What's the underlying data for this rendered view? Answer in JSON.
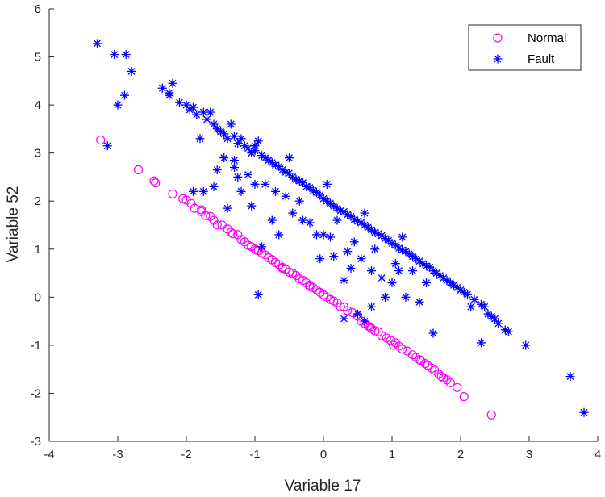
{
  "chart_data": {
    "type": "scatter",
    "title": "",
    "xlabel": "Variable 17",
    "ylabel": "Variable 52",
    "xlim": [
      -4,
      4
    ],
    "ylim": [
      -3,
      6
    ],
    "xticks": [
      -4,
      -3,
      -2,
      -1,
      0,
      1,
      2,
      3,
      4
    ],
    "yticks": [
      -3,
      -2,
      -1,
      0,
      1,
      2,
      3,
      4,
      5,
      6
    ],
    "grid": false,
    "legend_position": "top-right",
    "series": [
      {
        "name": "Normal",
        "marker": "circle",
        "color": "#ff00ff",
        "points": [
          [
            -3.25,
            3.27
          ],
          [
            -2.7,
            2.65
          ],
          [
            -2.47,
            2.42
          ],
          [
            -2.45,
            2.38
          ],
          [
            -2.2,
            2.15
          ],
          [
            -2.05,
            2.05
          ],
          [
            -2.0,
            2.02
          ],
          [
            -1.93,
            1.95
          ],
          [
            -1.88,
            1.85
          ],
          [
            -1.78,
            1.82
          ],
          [
            -1.72,
            1.7
          ],
          [
            -1.65,
            1.68
          ],
          [
            -1.55,
            1.5
          ],
          [
            -1.48,
            1.5
          ],
          [
            -1.4,
            1.42
          ],
          [
            -1.35,
            1.35
          ],
          [
            -1.32,
            1.32
          ],
          [
            -1.25,
            1.3
          ],
          [
            -1.2,
            1.2
          ],
          [
            -1.15,
            1.15
          ],
          [
            -1.1,
            1.08
          ],
          [
            -1.05,
            1.05
          ],
          [
            -1.0,
            1.0
          ],
          [
            -0.95,
            0.97
          ],
          [
            -0.9,
            0.92
          ],
          [
            -0.85,
            0.88
          ],
          [
            -0.8,
            0.82
          ],
          [
            -0.75,
            0.78
          ],
          [
            -0.7,
            0.72
          ],
          [
            -0.65,
            0.68
          ],
          [
            -0.6,
            0.62
          ],
          [
            -0.55,
            0.58
          ],
          [
            -0.5,
            0.52
          ],
          [
            -0.45,
            0.5
          ],
          [
            -0.4,
            0.45
          ],
          [
            -0.35,
            0.38
          ],
          [
            -0.3,
            0.35
          ],
          [
            -0.25,
            0.3
          ],
          [
            -0.2,
            0.25
          ],
          [
            -0.15,
            0.2
          ],
          [
            -0.1,
            0.15
          ],
          [
            -0.05,
            0.1
          ],
          [
            0.0,
            0.05
          ],
          [
            0.05,
            0.0
          ],
          [
            0.1,
            -0.05
          ],
          [
            0.15,
            -0.08
          ],
          [
            0.2,
            -0.12
          ],
          [
            0.3,
            -0.2
          ],
          [
            0.35,
            -0.28
          ],
          [
            0.42,
            -0.32
          ],
          [
            0.5,
            -0.4
          ],
          [
            0.55,
            -0.5
          ],
          [
            0.6,
            -0.55
          ],
          [
            0.65,
            -0.6
          ],
          [
            0.7,
            -0.65
          ],
          [
            0.75,
            -0.7
          ],
          [
            0.8,
            -0.72
          ],
          [
            0.85,
            -0.8
          ],
          [
            0.92,
            -0.85
          ],
          [
            0.98,
            -0.9
          ],
          [
            1.05,
            -0.95
          ],
          [
            1.1,
            -1.02
          ],
          [
            1.15,
            -1.08
          ],
          [
            1.22,
            -1.12
          ],
          [
            1.3,
            -1.2
          ],
          [
            1.35,
            -1.25
          ],
          [
            1.42,
            -1.32
          ],
          [
            1.48,
            -1.38
          ],
          [
            1.52,
            -1.42
          ],
          [
            1.58,
            -1.48
          ],
          [
            1.62,
            -1.52
          ],
          [
            1.68,
            -1.6
          ],
          [
            1.72,
            -1.65
          ],
          [
            1.8,
            -1.72
          ],
          [
            1.85,
            -1.78
          ],
          [
            1.95,
            -1.88
          ],
          [
            2.05,
            -2.07
          ],
          [
            2.45,
            -2.45
          ],
          [
            -1.78,
            1.78
          ],
          [
            -1.6,
            1.6
          ],
          [
            -0.98,
            0.98
          ],
          [
            -0.6,
            0.6
          ],
          [
            -0.2,
            0.22
          ],
          [
            0.25,
            -0.2
          ],
          [
            0.68,
            -0.62
          ],
          [
            1.02,
            -1.0
          ],
          [
            1.4,
            -1.3
          ],
          [
            1.75,
            -1.68
          ]
        ]
      },
      {
        "name": "Fault",
        "marker": "asterisk",
        "color": "#0000ff",
        "points": [
          [
            -3.3,
            5.28
          ],
          [
            -3.05,
            5.05
          ],
          [
            -2.88,
            5.05
          ],
          [
            -2.8,
            4.7
          ],
          [
            -2.9,
            4.2
          ],
          [
            -3.0,
            4.0
          ],
          [
            -3.15,
            3.15
          ],
          [
            -2.35,
            4.35
          ],
          [
            -2.2,
            4.45
          ],
          [
            -2.25,
            4.2
          ],
          [
            -2.1,
            4.05
          ],
          [
            -2.0,
            4.0
          ],
          [
            -1.95,
            3.9
          ],
          [
            -1.9,
            3.95
          ],
          [
            -1.85,
            3.8
          ],
          [
            -1.75,
            3.85
          ],
          [
            -1.7,
            3.7
          ],
          [
            -1.65,
            3.85
          ],
          [
            -1.6,
            3.6
          ],
          [
            -1.55,
            3.5
          ],
          [
            -1.5,
            3.45
          ],
          [
            -1.45,
            3.4
          ],
          [
            -1.4,
            3.3
          ],
          [
            -1.35,
            3.6
          ],
          [
            -1.3,
            3.35
          ],
          [
            -1.25,
            3.2
          ],
          [
            -1.2,
            3.3
          ],
          [
            -1.15,
            3.15
          ],
          [
            -1.1,
            3.1
          ],
          [
            -1.05,
            3.0
          ],
          [
            -1.0,
            3.05
          ],
          [
            -0.95,
            3.25
          ],
          [
            -0.9,
            2.95
          ],
          [
            -0.85,
            2.9
          ],
          [
            -0.8,
            2.85
          ],
          [
            -0.75,
            2.8
          ],
          [
            -0.7,
            2.75
          ],
          [
            -0.65,
            2.72
          ],
          [
            -0.6,
            2.65
          ],
          [
            -0.55,
            2.6
          ],
          [
            -0.5,
            2.58
          ],
          [
            -0.45,
            2.5
          ],
          [
            -0.4,
            2.45
          ],
          [
            -0.35,
            2.42
          ],
          [
            -0.3,
            2.38
          ],
          [
            -0.25,
            2.3
          ],
          [
            -0.2,
            2.28
          ],
          [
            -0.15,
            2.22
          ],
          [
            -0.1,
            2.18
          ],
          [
            -0.05,
            2.12
          ],
          [
            0.0,
            2.05
          ],
          [
            0.05,
            2.0
          ],
          [
            0.1,
            1.95
          ],
          [
            0.15,
            1.9
          ],
          [
            0.2,
            1.85
          ],
          [
            0.25,
            1.8
          ],
          [
            0.3,
            1.78
          ],
          [
            0.35,
            1.72
          ],
          [
            0.4,
            1.68
          ],
          [
            0.45,
            1.62
          ],
          [
            0.5,
            1.58
          ],
          [
            0.55,
            1.55
          ],
          [
            0.6,
            1.5
          ],
          [
            0.65,
            1.45
          ],
          [
            0.7,
            1.4
          ],
          [
            0.75,
            1.35
          ],
          [
            0.8,
            1.32
          ],
          [
            0.85,
            1.28
          ],
          [
            0.9,
            1.22
          ],
          [
            0.95,
            1.18
          ],
          [
            1.0,
            1.12
          ],
          [
            1.05,
            1.08
          ],
          [
            1.1,
            1.02
          ],
          [
            1.15,
            0.98
          ],
          [
            1.2,
            0.95
          ],
          [
            1.25,
            0.9
          ],
          [
            1.3,
            0.85
          ],
          [
            1.35,
            0.8
          ],
          [
            1.4,
            0.75
          ],
          [
            1.45,
            0.7
          ],
          [
            1.5,
            0.65
          ],
          [
            1.55,
            0.62
          ],
          [
            1.6,
            0.55
          ],
          [
            1.65,
            0.5
          ],
          [
            1.7,
            0.45
          ],
          [
            1.75,
            0.4
          ],
          [
            1.8,
            0.35
          ],
          [
            1.85,
            0.3
          ],
          [
            1.9,
            0.25
          ],
          [
            1.95,
            0.2
          ],
          [
            2.0,
            0.15
          ],
          [
            2.05,
            0.1
          ],
          [
            2.1,
            0.05
          ],
          [
            2.2,
            -0.05
          ],
          [
            2.3,
            -0.15
          ],
          [
            2.35,
            -0.2
          ],
          [
            2.4,
            -0.35
          ],
          [
            2.45,
            -0.4
          ],
          [
            2.5,
            -0.45
          ],
          [
            2.55,
            -0.55
          ],
          [
            2.65,
            -0.68
          ],
          [
            2.7,
            -0.72
          ],
          [
            2.95,
            -1.0
          ],
          [
            2.3,
            -0.95
          ],
          [
            3.6,
            -1.65
          ],
          [
            3.8,
            -2.4
          ],
          [
            -1.8,
            3.3
          ],
          [
            -1.55,
            2.65
          ],
          [
            -1.45,
            2.9
          ],
          [
            -1.3,
            2.7
          ],
          [
            -1.25,
            2.5
          ],
          [
            -1.2,
            2.2
          ],
          [
            -1.1,
            2.55
          ],
          [
            -1.05,
            1.9
          ],
          [
            -1.4,
            1.85
          ],
          [
            -1.6,
            2.3
          ],
          [
            -1.75,
            2.2
          ],
          [
            -1.9,
            2.2
          ],
          [
            -0.75,
            1.6
          ],
          [
            -0.7,
            2.2
          ],
          [
            -0.55,
            2.1
          ],
          [
            -0.45,
            1.75
          ],
          [
            -0.3,
            1.6
          ],
          [
            -0.2,
            1.55
          ],
          [
            -0.1,
            1.3
          ],
          [
            0.0,
            1.3
          ],
          [
            0.1,
            1.25
          ],
          [
            -0.05,
            0.8
          ],
          [
            0.35,
            0.95
          ],
          [
            0.4,
            0.6
          ],
          [
            0.55,
            0.8
          ],
          [
            0.7,
            0.55
          ],
          [
            0.85,
            0.4
          ],
          [
            1.0,
            0.3
          ],
          [
            1.2,
            0.0
          ],
          [
            1.4,
            -0.1
          ],
          [
            1.6,
            -0.75
          ],
          [
            0.7,
            -0.2
          ],
          [
            0.5,
            -0.35
          ],
          [
            0.3,
            -0.45
          ],
          [
            -0.9,
            1.05
          ],
          [
            -0.95,
            0.05
          ],
          [
            0.3,
            0.35
          ],
          [
            0.9,
            0.0
          ],
          [
            0.6,
            -0.5
          ],
          [
            1.05,
            0.7
          ],
          [
            0.2,
            1.6
          ],
          [
            -0.35,
            2.0
          ],
          [
            -0.65,
            1.3
          ],
          [
            0.15,
            0.85
          ],
          [
            1.3,
            0.55
          ],
          [
            -1.3,
            2.85
          ],
          [
            -1.0,
            2.35
          ],
          [
            -0.85,
            2.35
          ],
          [
            0.45,
            1.15
          ],
          [
            0.75,
            1.0
          ],
          [
            1.1,
            0.55
          ],
          [
            1.5,
            0.3
          ],
          [
            2.15,
            -0.2
          ],
          [
            -2.25,
            4.25
          ],
          [
            -1.0,
            3.15
          ],
          [
            -0.5,
            2.9
          ],
          [
            0.05,
            2.35
          ],
          [
            0.6,
            1.75
          ],
          [
            1.15,
            1.25
          ]
        ]
      }
    ]
  }
}
